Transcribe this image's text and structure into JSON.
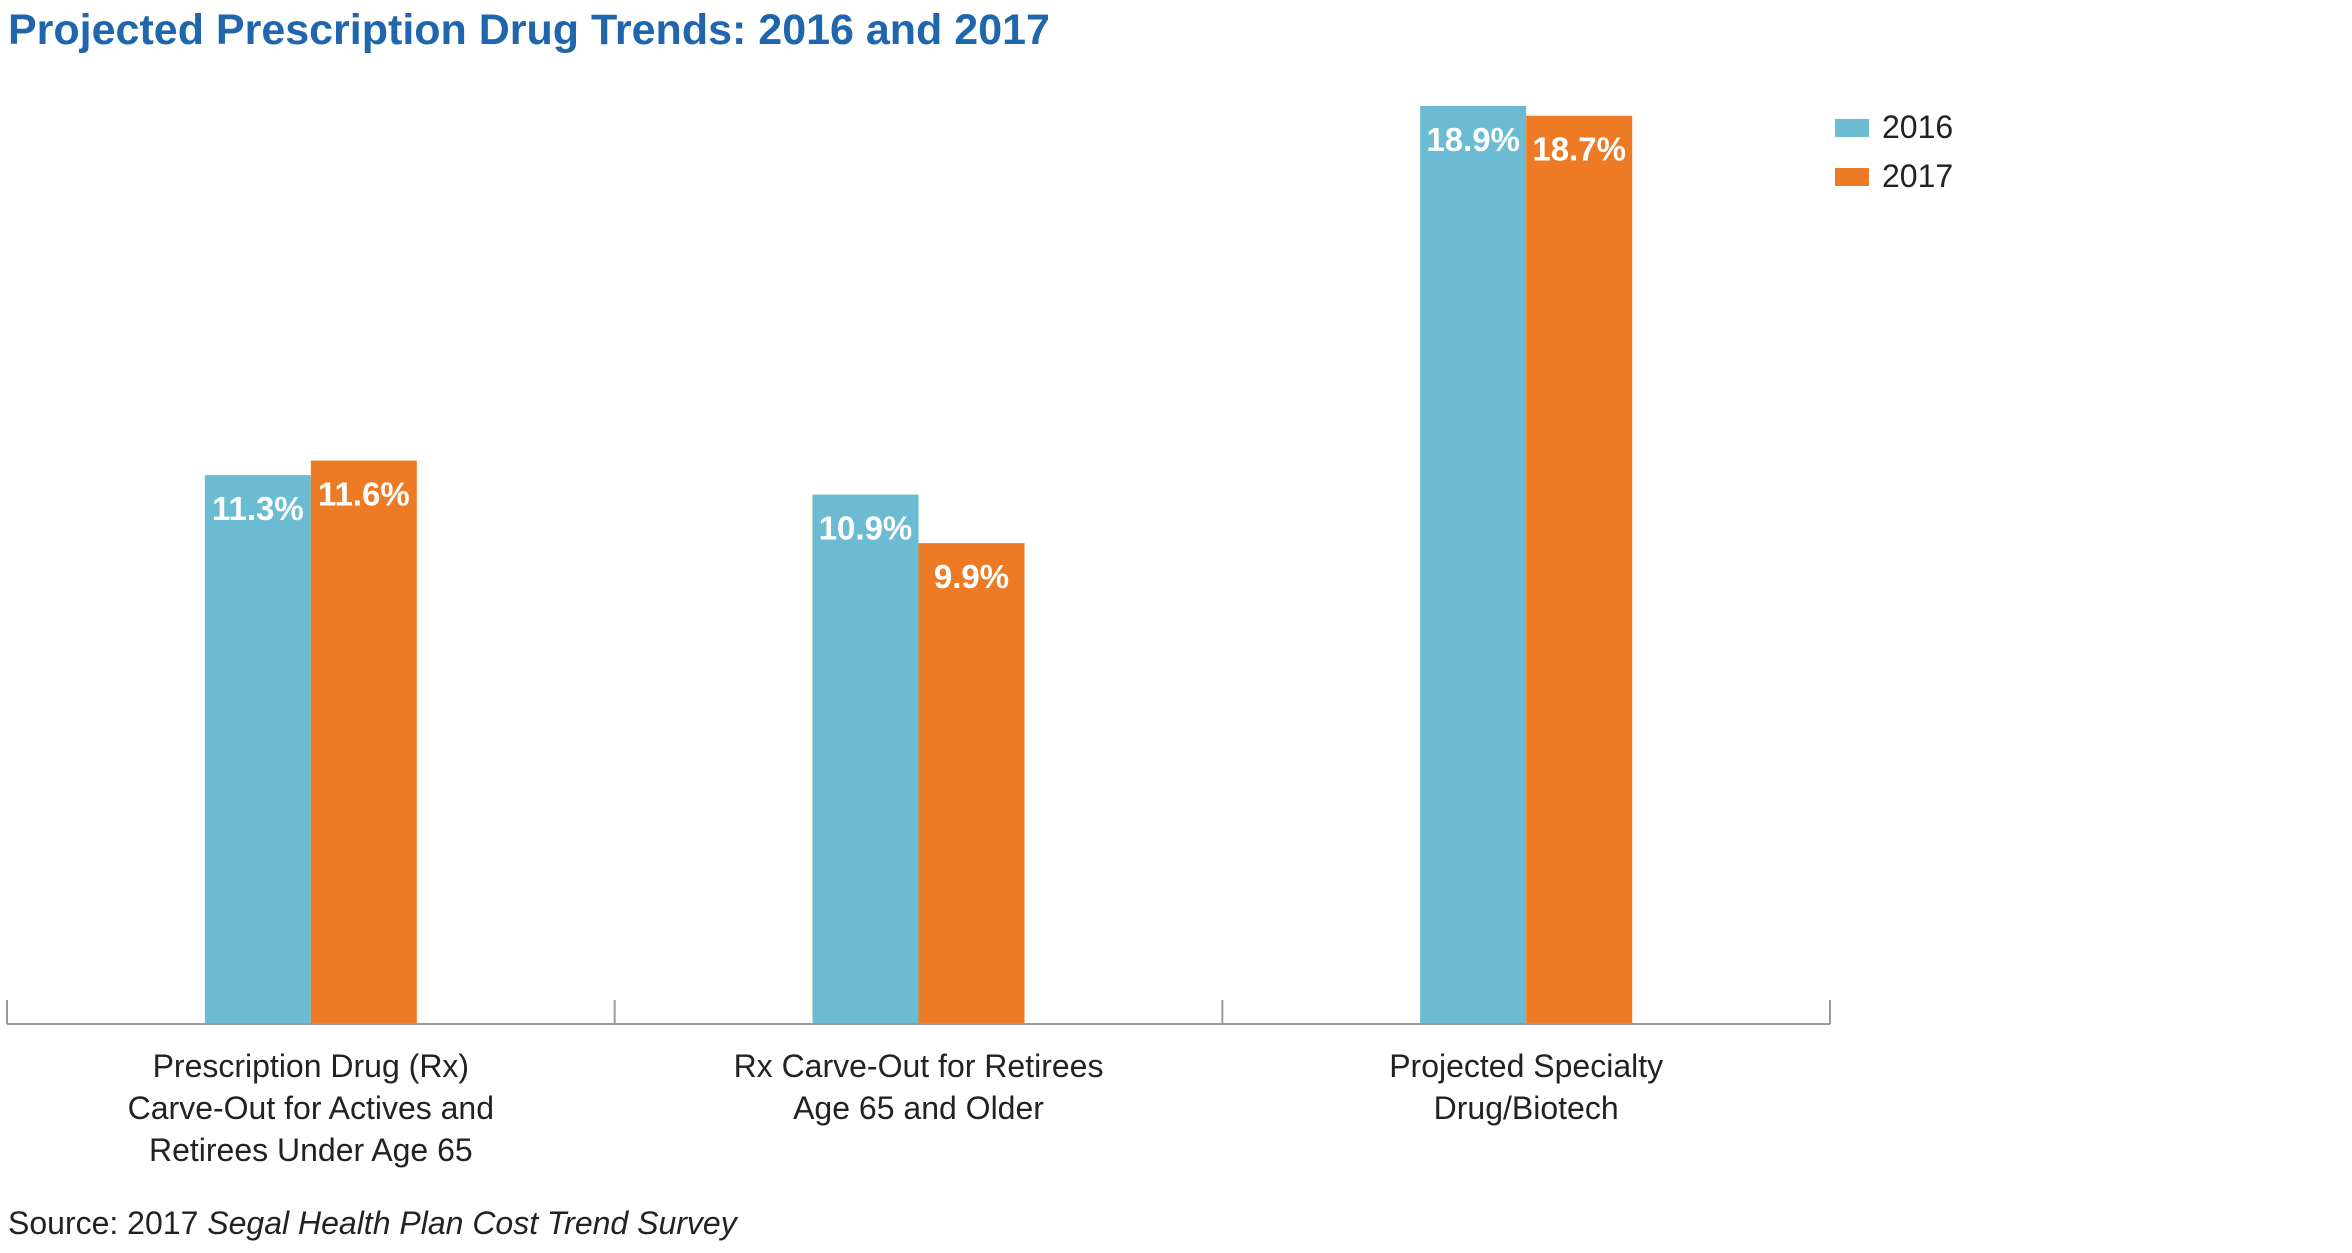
{
  "title": "Projected Prescription Drug Trends: 2016 and 2017",
  "source": {
    "prefix": "Source: 2017 ",
    "italic": "Segal Health Plan Cost Trend Survey"
  },
  "chart_data": {
    "type": "bar",
    "categories": [
      [
        "Prescription Drug (Rx)",
        "Carve-Out for Actives and",
        "Retirees Under Age 65"
      ],
      [
        "Rx Carve-Out for Retirees",
        "Age 65 and Older"
      ],
      [
        "Projected Specialty",
        "Drug/Biotech"
      ]
    ],
    "series": [
      {
        "name": "2016",
        "color": "#6bbbd2",
        "values": [
          11.3,
          10.9,
          18.9
        ],
        "labels": [
          "11.3%",
          "10.9%",
          "18.9%"
        ]
      },
      {
        "name": "2017",
        "color": "#ed7a24",
        "values": [
          11.6,
          9.9,
          18.7
        ],
        "labels": [
          "11.6%",
          "9.9%",
          "18.7%"
        ]
      }
    ],
    "ylim": [
      0,
      18.9
    ],
    "grid": false,
    "legend": "top-right",
    "xlabel": "",
    "ylabel": ""
  }
}
